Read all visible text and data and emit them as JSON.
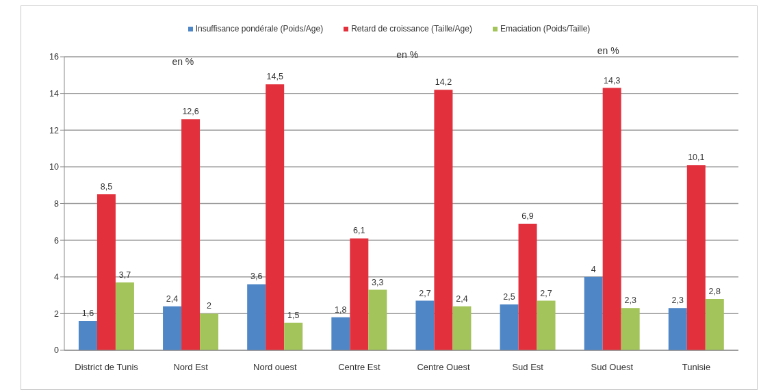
{
  "chart_data": {
    "type": "bar",
    "categories": [
      "District de Tunis",
      "Nord Est",
      "Nord ouest",
      "Centre Est",
      "Centre Ouest",
      "Sud Est",
      "Sud Ouest",
      "Tunisie"
    ],
    "series": [
      {
        "name": "Insuffisance pondérale (Poids/Age)",
        "color": "#4f86c6",
        "values": [
          1.6,
          2.4,
          3.6,
          1.8,
          2.7,
          2.5,
          4,
          2.3
        ],
        "value_labels": [
          "1,6",
          "2,4",
          "3,6",
          "1,8",
          "2,7",
          "2,5",
          "4",
          "2,3"
        ]
      },
      {
        "name": "Retard de croissance (Taille/Age)",
        "color": "#e2313d",
        "values": [
          8.5,
          12.6,
          14.5,
          6.1,
          14.2,
          6.9,
          14.3,
          10.1
        ],
        "value_labels": [
          "8,5",
          "12,6",
          "14,5",
          "6,1",
          "14,2",
          "6,9",
          "14,3",
          "10,1"
        ]
      },
      {
        "name": "Emaciation (Poids/Taille)",
        "color": "#a3c45a",
        "values": [
          3.7,
          2,
          1.5,
          3.3,
          2.4,
          2.7,
          2.3,
          2.8
        ],
        "value_labels": [
          "3,7",
          "2",
          "1,5",
          "3,3",
          "2,4",
          "2,7",
          "2,3",
          "2,8"
        ]
      }
    ],
    "ylim": [
      0,
      16
    ],
    "yticks": [
      0,
      2,
      4,
      6,
      8,
      10,
      12,
      14,
      16
    ],
    "grid": "y",
    "legend": "top",
    "annotations": [
      "en %",
      "en %",
      "en %"
    ]
  }
}
